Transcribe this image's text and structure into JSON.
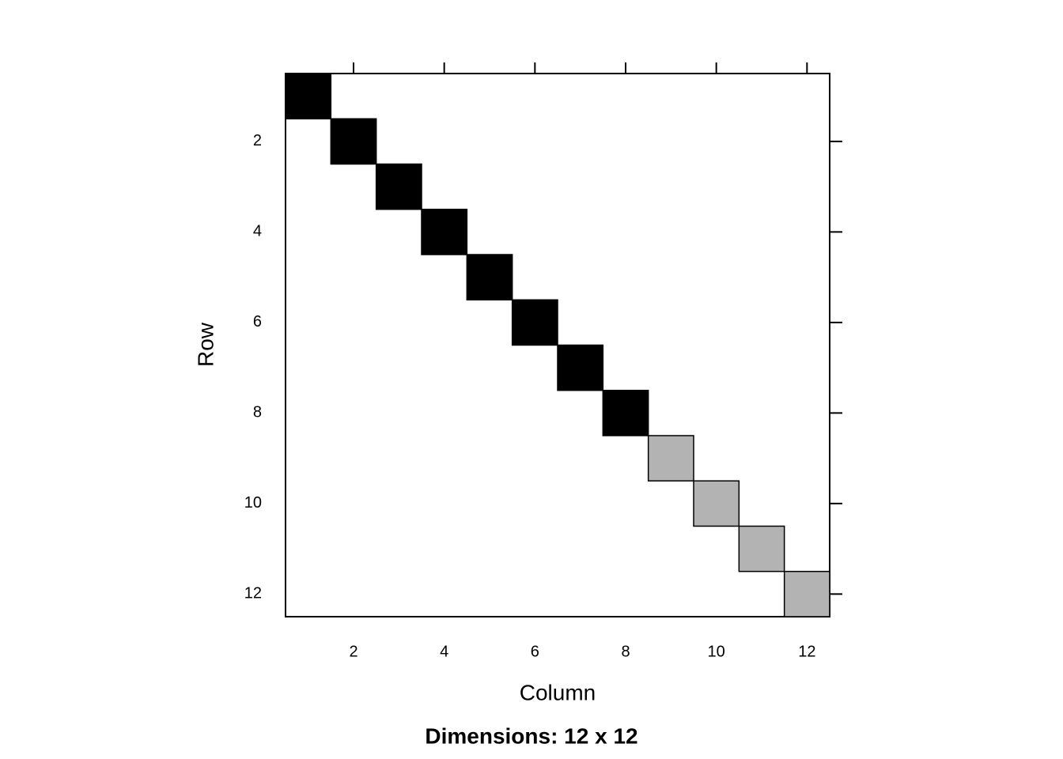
{
  "chart_data": {
    "type": "matrix",
    "x_label": "Column",
    "y_label": "Row",
    "subtitle": "Dimensions: 12 x 12",
    "x": [
      1,
      2,
      3,
      4,
      5,
      6,
      7,
      8,
      9,
      10,
      11,
      12
    ],
    "y": [
      1,
      2,
      3,
      4,
      5,
      6,
      7,
      8,
      9,
      10,
      11,
      12
    ],
    "colors": [
      "#000000",
      "#000000",
      "#000000",
      "#000000",
      "#000000",
      "#000000",
      "#000000",
      "#000000",
      "#b3b3b3",
      "#b3b3b3",
      "#b3b3b3",
      "#b3b3b3"
    ],
    "xlim": [
      0.5,
      12.5
    ],
    "ylim": [
      12.5,
      0.5
    ],
    "xticks": [
      2,
      4,
      6,
      8,
      10,
      12
    ],
    "yticks": [
      2,
      4,
      6,
      8,
      10,
      12
    ]
  }
}
